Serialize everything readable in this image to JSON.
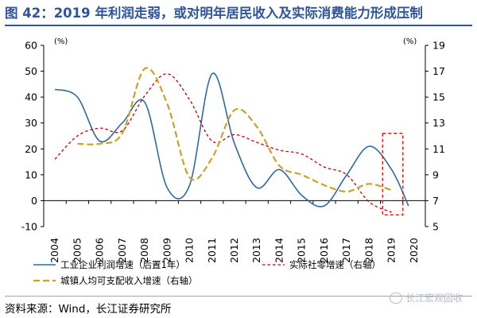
{
  "header": {
    "title": "图 42：2019 年利润走弱，或对明年居民收入及实际消费能力形成压制"
  },
  "footer": {
    "source": "资料来源：Wind，长江证券研究所",
    "watermark": "长江宏观固收"
  },
  "colors": {
    "title": "#2f5597",
    "profit": "#2e6aa0",
    "retail": "#c00000",
    "income": "#c9a227",
    "highlight": "#ff0000"
  },
  "chart_data": {
    "type": "line",
    "title": "",
    "x": [
      "2004",
      "2005",
      "2006",
      "2007",
      "2008",
      "2009",
      "2010",
      "2011",
      "2012",
      "2013",
      "2014",
      "2015",
      "2016",
      "2017",
      "2018",
      "2019",
      "2020"
    ],
    "ylim_left": [
      -10,
      60
    ],
    "ylim_right": [
      5,
      19
    ],
    "yticks_left": [
      -10,
      0,
      10,
      20,
      30,
      40,
      50,
      60
    ],
    "yticks_right": [
      5,
      7,
      9,
      11,
      13,
      15,
      17,
      19
    ],
    "unit_left": "(%)",
    "unit_right": "(%)",
    "legend_position": "bottom",
    "series": [
      {
        "name": "工业企业利润增速（后置1年）",
        "axis": "left",
        "style": "solid",
        "points": [
          [
            2004,
            43
          ],
          [
            2005,
            40
          ],
          [
            2006,
            23
          ],
          [
            2007,
            30
          ],
          [
            2008,
            38
          ],
          [
            2009,
            5
          ],
          [
            2010,
            6
          ],
          [
            2011,
            49
          ],
          [
            2012,
            22
          ],
          [
            2013,
            5
          ],
          [
            2014,
            12
          ],
          [
            2015,
            2
          ],
          [
            2016,
            -2
          ],
          [
            2017,
            10
          ],
          [
            2018,
            21
          ],
          [
            2019,
            12
          ],
          [
            2019.75,
            -2
          ]
        ]
      },
      {
        "name": "实际社零增速（右轴）",
        "axis": "right",
        "style": "dash",
        "points": [
          [
            2004,
            10.2
          ],
          [
            2005,
            12
          ],
          [
            2006,
            12.6
          ],
          [
            2007,
            12.4
          ],
          [
            2008,
            15.1
          ],
          [
            2009,
            16.8
          ],
          [
            2010,
            14.8
          ],
          [
            2011,
            11.6
          ],
          [
            2012,
            12.1
          ],
          [
            2013,
            11.5
          ],
          [
            2014,
            10.9
          ],
          [
            2015,
            10.6
          ],
          [
            2016,
            9.6
          ],
          [
            2017,
            9.0
          ],
          [
            2018,
            6.9
          ],
          [
            2019,
            6.1
          ]
        ]
      },
      {
        "name": "城镇人均可支配收入增速（右轴）",
        "axis": "right",
        "style": "longdash",
        "points": [
          [
            2005,
            11.4
          ],
          [
            2006,
            11.4
          ],
          [
            2007,
            12.2
          ],
          [
            2008,
            17.2
          ],
          [
            2009,
            14.5
          ],
          [
            2010,
            8.8
          ],
          [
            2011,
            10.3
          ],
          [
            2012,
            14.0
          ],
          [
            2013,
            12.7
          ],
          [
            2014,
            9.7
          ],
          [
            2015,
            9.0
          ],
          [
            2016,
            8.2
          ],
          [
            2017,
            7.7
          ],
          [
            2018,
            8.3
          ],
          [
            2019,
            7.8
          ]
        ]
      }
    ],
    "highlight_box": {
      "x_range": [
        2018.6,
        2019.5
      ],
      "y_range_right": [
        5.9,
        12.2
      ]
    }
  }
}
